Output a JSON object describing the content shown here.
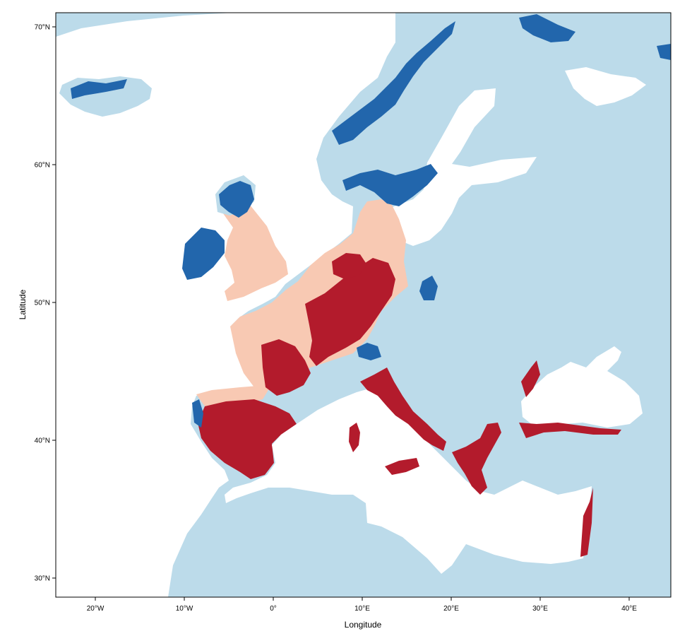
{
  "map": {
    "xlabel": "Longitude",
    "ylabel": "Latitude",
    "x_ticks": [
      {
        "label": "20°W",
        "lon": -20
      },
      {
        "label": "10°W",
        "lon": -10
      },
      {
        "label": "0°",
        "lon": 0
      },
      {
        "label": "10°E",
        "lon": 10
      },
      {
        "label": "20°E",
        "lon": 20
      },
      {
        "label": "30°E",
        "lon": 30
      },
      {
        "label": "40°E",
        "lon": 40
      }
    ],
    "y_ticks": [
      {
        "label": "30°N",
        "lat": 30
      },
      {
        "label": "40°N",
        "lat": 40
      },
      {
        "label": "50°N",
        "lat": 50
      },
      {
        "label": "60°N",
        "lat": 60
      },
      {
        "label": "70°N",
        "lat": 70
      }
    ],
    "colors": {
      "land_background": "#bcdbea",
      "light_salmon": "#f8c9b3",
      "dark_red": "#b31b2c",
      "dark_blue": "#2266ac",
      "water": "#ffffff"
    }
  }
}
